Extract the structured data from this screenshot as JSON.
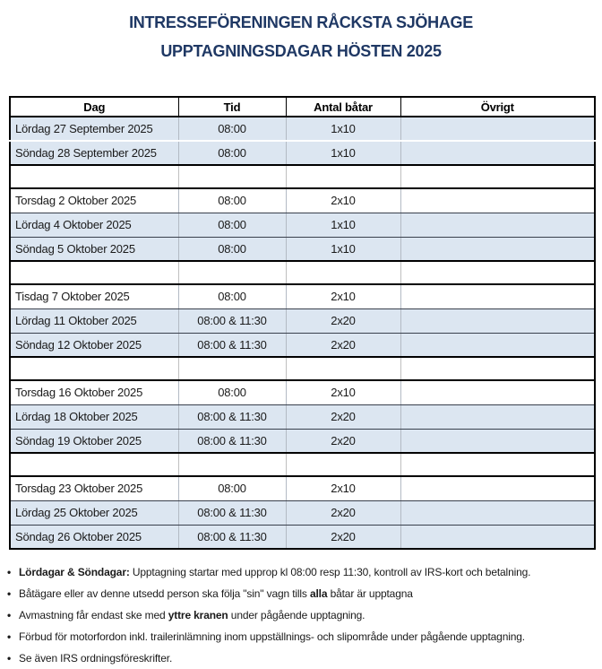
{
  "title": {
    "line1": "INTRESSEFÖRENINGEN RÅCKSTA SJÖHAGE",
    "line2": "UPPTAGNINGSDAGAR HÖSTEN 2025"
  },
  "table": {
    "columns": [
      "Dag",
      "Tid",
      "Antal båtar",
      "Övrigt"
    ],
    "rows": [
      {
        "dag": "Lördag 27 September 2025",
        "tid": "08:00",
        "antal": "1x10",
        "ovrigt": "",
        "shaded": true,
        "blank": false,
        "sep": "white"
      },
      {
        "dag": "Söndag 28 September 2025",
        "tid": "08:00",
        "antal": "1x10",
        "ovrigt": "",
        "shaded": true,
        "blank": false,
        "sep": "none"
      },
      {
        "blank": true
      },
      {
        "dag": "Torsdag 2 Oktober 2025",
        "tid": "08:00",
        "antal": "2x10",
        "ovrigt": "",
        "shaded": false,
        "blank": false,
        "sep": "dark"
      },
      {
        "dag": "Lördag 4 Oktober 2025",
        "tid": "08:00",
        "antal": "1x10",
        "ovrigt": "",
        "shaded": true,
        "blank": false,
        "sep": "dark"
      },
      {
        "dag": "Söndag 5 Oktober 2025",
        "tid": "08:00",
        "antal": "1x10",
        "ovrigt": "",
        "shaded": true,
        "blank": false,
        "sep": "none"
      },
      {
        "blank": true
      },
      {
        "dag": "Tisdag 7 Oktober 2025",
        "tid": "08:00",
        "antal": "2x10",
        "ovrigt": "",
        "shaded": false,
        "blank": false,
        "sep": "dark"
      },
      {
        "dag": "Lördag 11 Oktober 2025",
        "tid": "08:00 & 11:30",
        "antal": "2x20",
        "ovrigt": "",
        "shaded": true,
        "blank": false,
        "sep": "dark"
      },
      {
        "dag": "Söndag 12 Oktober 2025",
        "tid": "08:00 & 11:30",
        "antal": "2x20",
        "ovrigt": "",
        "shaded": true,
        "blank": false,
        "sep": "none"
      },
      {
        "blank": true
      },
      {
        "dag": "Torsdag 16 Oktober 2025",
        "tid": "08:00",
        "antal": "2x10",
        "ovrigt": "",
        "shaded": false,
        "blank": false,
        "sep": "dark"
      },
      {
        "dag": "Lördag 18 Oktober 2025",
        "tid": "08:00 & 11:30",
        "antal": "2x20",
        "ovrigt": "",
        "shaded": true,
        "blank": false,
        "sep": "dark"
      },
      {
        "dag": "Söndag 19 Oktober 2025",
        "tid": "08:00 & 11:30",
        "antal": "2x20",
        "ovrigt": "",
        "shaded": true,
        "blank": false,
        "sep": "none"
      },
      {
        "blank": true
      },
      {
        "dag": "Torsdag 23 Oktober 2025",
        "tid": "08:00",
        "antal": "2x10",
        "ovrigt": "",
        "shaded": false,
        "blank": false,
        "sep": "dark"
      },
      {
        "dag": "Lördag 25 Oktober 2025",
        "tid": "08:00 & 11:30",
        "antal": "2x20",
        "ovrigt": "",
        "shaded": true,
        "blank": false,
        "sep": "dark"
      },
      {
        "dag": "Söndag 26 Oktober 2025",
        "tid": "08:00 & 11:30",
        "antal": "2x20",
        "ovrigt": "",
        "shaded": true,
        "blank": false,
        "sep": "none"
      }
    ]
  },
  "notes": [
    {
      "segments": [
        {
          "text": "Lördagar & Söndagar:",
          "bold": true
        },
        {
          "text": " Upptagning startar med upprop kl 08:00 resp 11:30, kontroll av IRS-kort och betalning.",
          "bold": false
        }
      ]
    },
    {
      "segments": [
        {
          "text": "Båtägare eller av denne utsedd person ska följa \"sin\" vagn tills ",
          "bold": false
        },
        {
          "text": "alla",
          "bold": true
        },
        {
          "text": " båtar är upptagna",
          "bold": false
        }
      ]
    },
    {
      "segments": [
        {
          "text": "Avmastning får endast ske med ",
          "bold": false
        },
        {
          "text": "yttre kranen",
          "bold": true
        },
        {
          "text": " under pågående upptagning.",
          "bold": false
        }
      ]
    },
    {
      "segments": [
        {
          "text": "Förbud för motorfordon inkl. trailerinlämning inom uppställnings- och slipområde under pågående upptagning.",
          "bold": false
        }
      ]
    },
    {
      "segments": [
        {
          "text": "Se även IRS ordningsföreskrifter.",
          "bold": false
        }
      ]
    }
  ],
  "bullet_glyph": "•",
  "colors": {
    "title_navy": "#1F3864",
    "row_shaded_blue": "#DCE6F1",
    "table_border_black": "#000000",
    "row_separator_dark": "#39404d",
    "column_line_gray": "#b3bac4",
    "text_ink": "#1a1a1a"
  }
}
